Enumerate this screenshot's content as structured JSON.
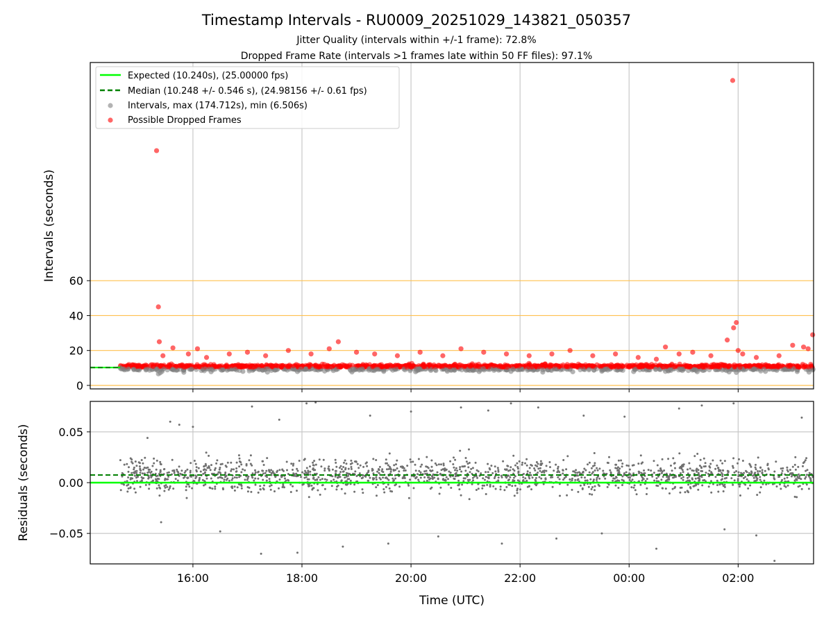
{
  "figure": {
    "title": "Timestamp Intervals - RU0009_20251029_143821_050357",
    "subtitle1": "Jitter Quality (intervals within +/-1 frame): 72.8%",
    "subtitle2": "Dropped Frame Rate (intervals >1 frames late within 50 FF files): 97.1%"
  },
  "chart_data": [
    {
      "type": "scatter",
      "ylabel": "Intervals (seconds)",
      "xlabel": "",
      "xlim": [
        "14:07",
        "03:23"
      ],
      "ylim": [
        -2,
        185
      ],
      "yticks": [
        0,
        20,
        40,
        60
      ],
      "ytick_labels": [
        "0",
        "20",
        "40",
        "60"
      ],
      "reference_lines": [
        0,
        20,
        40,
        60
      ],
      "reference_line_color": "#ffc04d",
      "grid": "x-only",
      "legend_position": "top-left",
      "legend": [
        "Expected (10.240s), (25.00000 fps)",
        "Median (10.248 +/- 0.546 s), (24.98156 +/- 0.61 fps)",
        "Intervals, max (174.712s), min (6.506s)",
        "Possible Dropped Frames"
      ],
      "series": [
        {
          "name": "Expected (10.240s), (25.00000 fps)",
          "kind": "hline",
          "value": 10.24,
          "color": "#00ff00",
          "style": "solid"
        },
        {
          "name": "Median (10.248 +/- 0.546 s), (24.98156 +/- 0.61 fps)",
          "kind": "hline",
          "value": 10.248,
          "color": "#008000",
          "style": "dashed"
        },
        {
          "name": "Intervals, max (174.712s), min (6.506s)",
          "kind": "scatter",
          "color": "#808080",
          "x": [
            "14:40",
            "14:55",
            "15:22",
            "15:24",
            "15:26",
            "15:50",
            "16:20",
            "16:55",
            "17:22",
            "17:55",
            "18:25",
            "18:55",
            "19:30",
            "20:05",
            "20:40",
            "21:15",
            "21:50",
            "22:25",
            "22:58",
            "23:30",
            "00:05",
            "00:40",
            "01:15",
            "01:50",
            "01:58",
            "02:30",
            "03:05",
            "03:18"
          ],
          "y": [
            10.2,
            9.0,
            6.6,
            7.2,
            8.0,
            7.5,
            7.8,
            8.0,
            7.6,
            7.9,
            8.2,
            7.7,
            8.0,
            7.8,
            8.1,
            7.9,
            8.0,
            7.6,
            7.8,
            8.1,
            7.9,
            8.0,
            7.8,
            7.7,
            7.4,
            8.0,
            7.9,
            7.6
          ]
        },
        {
          "name": "Possible Dropped Frames",
          "kind": "scatter",
          "color": "#ff0000",
          "x": [
            "15:20",
            "15:22",
            "15:23",
            "15:27",
            "15:38",
            "15:55",
            "16:05",
            "16:15",
            "16:40",
            "17:00",
            "17:20",
            "17:45",
            "18:10",
            "18:30",
            "18:40",
            "19:00",
            "19:20",
            "19:45",
            "20:10",
            "20:35",
            "20:55",
            "21:20",
            "21:45",
            "22:10",
            "22:35",
            "22:55",
            "23:20",
            "23:45",
            "00:10",
            "00:30",
            "00:40",
            "00:55",
            "01:10",
            "01:30",
            "01:48",
            "01:54",
            "01:55",
            "01:58",
            "02:00",
            "02:05",
            "02:20",
            "02:45",
            "03:00",
            "03:12",
            "03:17",
            "03:22"
          ],
          "y": [
            134.5,
            45,
            25,
            17,
            21.5,
            18,
            21,
            16,
            18,
            19,
            17,
            20,
            18,
            21,
            25,
            19,
            18,
            17,
            19,
            17,
            21,
            19,
            18,
            17,
            18,
            20,
            17,
            18,
            16,
            15,
            22,
            18,
            19,
            17,
            26,
            174.7,
            33,
            36,
            20,
            18,
            16,
            17,
            23,
            22,
            21,
            29
          ]
        }
      ]
    },
    {
      "type": "scatter",
      "ylabel": "Residuals (seconds)",
      "xlabel": "Time (UTC)",
      "xlim": [
        "14:07",
        "03:23"
      ],
      "ylim": [
        -0.08,
        0.08
      ],
      "yticks": [
        0.05,
        0.0,
        -0.05
      ],
      "ytick_labels": [
        "0.05",
        "0.00",
        "−0.05"
      ],
      "xticks": [
        "16:00",
        "18:00",
        "20:00",
        "22:00",
        "00:00",
        "02:00"
      ],
      "grid": "both",
      "series": [
        {
          "name": "Expected",
          "kind": "hline",
          "value": 0.0,
          "color": "#00ff00",
          "style": "solid"
        },
        {
          "name": "Median",
          "kind": "hline",
          "value": 0.0075,
          "color": "#008000",
          "style": "dashed"
        },
        {
          "name": "Residuals",
          "kind": "scatter",
          "color": "#707070",
          "x": [
            "15:10",
            "15:25",
            "15:35",
            "15:45",
            "16:00",
            "16:30",
            "17:05",
            "17:15",
            "17:35",
            "17:55",
            "18:05",
            "18:15",
            "18:45",
            "19:15",
            "19:35",
            "20:00",
            "20:30",
            "20:55",
            "21:25",
            "21:40",
            "21:50",
            "22:20",
            "22:40",
            "23:10",
            "23:30",
            "23:55",
            "00:30",
            "00:55",
            "01:20",
            "01:45",
            "01:55",
            "02:20",
            "02:40",
            "03:10"
          ],
          "y": [
            0.044,
            -0.039,
            0.06,
            0.057,
            0.055,
            -0.048,
            0.075,
            -0.07,
            0.062,
            -0.069,
            0.078,
            0.079,
            -0.063,
            0.066,
            -0.06,
            0.07,
            -0.053,
            0.074,
            0.071,
            -0.06,
            0.078,
            0.074,
            -0.055,
            0.066,
            -0.05,
            0.065,
            -0.065,
            0.073,
            0.076,
            -0.046,
            0.078,
            -0.052,
            -0.077,
            0.064
          ],
          "band": {
            "center": 0.007,
            "spread": 0.045
          }
        }
      ]
    }
  ]
}
